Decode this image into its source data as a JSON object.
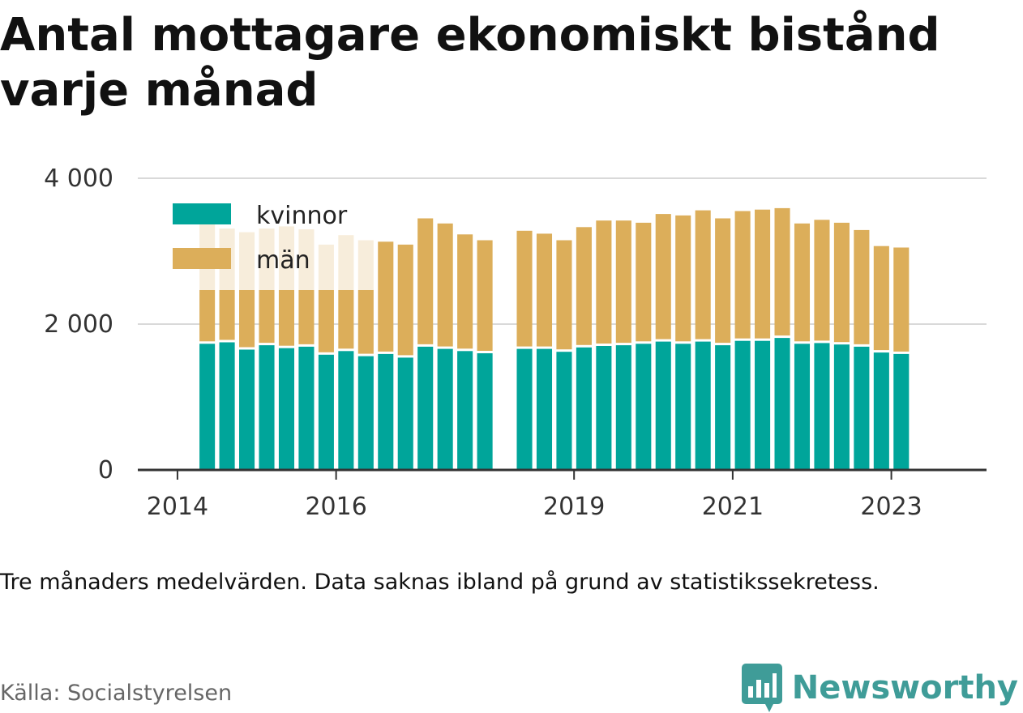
{
  "title": "Antal mottagare ekonomiskt bistånd varje månad",
  "note": "Tre månaders medelvärden. Data saknas ibland på grund av statistikssekretess.",
  "source": "Källa: Socialstyrelsen",
  "brand": {
    "name": "Newsworthy",
    "logo_icon": "bar-chart-speech-bubble-icon"
  },
  "colors": {
    "kvinnor": "#00a59a",
    "man": "#dcae5a",
    "grid": "#d9d9d9",
    "axis": "#333333"
  },
  "chart_data": {
    "type": "bar",
    "stacked": true,
    "xlabel": "",
    "ylabel": "",
    "ylim": [
      0,
      4000
    ],
    "yticks": [
      {
        "value": 0,
        "label": "0"
      },
      {
        "value": 2000,
        "label": "2 000"
      },
      {
        "value": 4000,
        "label": "4 000"
      }
    ],
    "xticks": [
      {
        "value": 2014,
        "label": "2014"
      },
      {
        "value": 2016,
        "label": "2016"
      },
      {
        "value": 2019,
        "label": "2019"
      },
      {
        "value": 2021,
        "label": "2021"
      },
      {
        "value": 2023,
        "label": "2023"
      }
    ],
    "x_range": [
      2013.5,
      2024.2
    ],
    "legend_position": "top-left",
    "grid": true,
    "x": [
      2014.375,
      2014.625,
      2014.875,
      2015.125,
      2015.375,
      2015.625,
      2015.875,
      2016.125,
      2016.375,
      2016.625,
      2016.875,
      2017.125,
      2017.375,
      2017.625,
      2017.875,
      2018.375,
      2018.625,
      2018.875,
      2019.125,
      2019.375,
      2019.625,
      2019.875,
      2020.125,
      2020.375,
      2020.625,
      2020.875,
      2021.125,
      2021.375,
      2021.625,
      2021.875,
      2022.125,
      2022.375,
      2022.625,
      2022.875,
      2023.125
    ],
    "series": [
      {
        "name": "kvinnor",
        "values": [
          1730,
          1750,
          1650,
          1710,
          1670,
          1690,
          1580,
          1630,
          1560,
          1590,
          1540,
          1690,
          1660,
          1630,
          1600,
          1660,
          1660,
          1620,
          1680,
          1700,
          1710,
          1730,
          1760,
          1730,
          1760,
          1710,
          1770,
          1770,
          1810,
          1730,
          1740,
          1720,
          1690,
          1610,
          1590
        ]
      },
      {
        "name": "män",
        "values": [
          1710,
          1560,
          1610,
          1600,
          1670,
          1610,
          1510,
          1590,
          1590,
          1540,
          1550,
          1760,
          1720,
          1600,
          1550,
          1620,
          1580,
          1530,
          1650,
          1720,
          1710,
          1660,
          1750,
          1760,
          1800,
          1740,
          1780,
          1800,
          1780,
          1650,
          1690,
          1670,
          1600,
          1460,
          1460
        ]
      }
    ]
  }
}
